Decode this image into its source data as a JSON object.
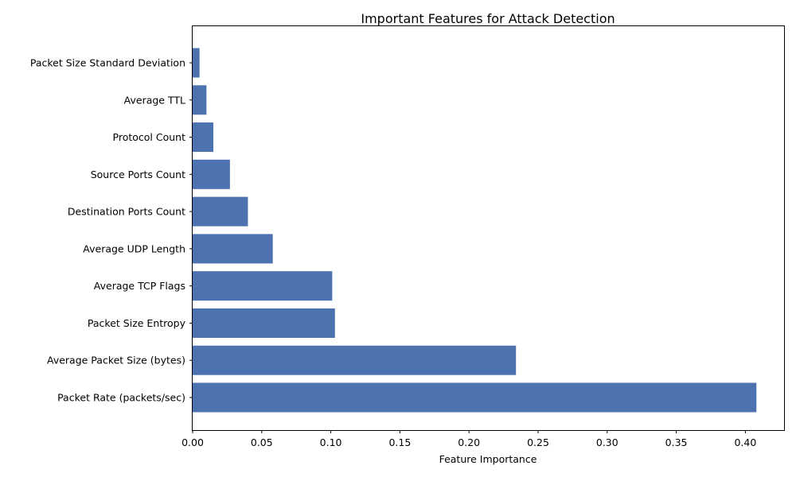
{
  "chart_data": {
    "type": "bar",
    "orientation": "horizontal",
    "title": "Important Features for Attack Detection",
    "xlabel": "Feature Importance",
    "ylabel": "",
    "xlim": [
      0,
      0.428
    ],
    "xticks": [
      "0.00",
      "0.05",
      "0.10",
      "0.15",
      "0.20",
      "0.25",
      "0.30",
      "0.35",
      "0.40"
    ],
    "grid": false,
    "bar_color": "#4c72b0",
    "categories": [
      "Packet Rate (packets/sec)",
      "Average Packet Size (bytes)",
      "Packet Size Entropy",
      "Average TCP Flags",
      "Average UDP Length",
      "Destination Ports Count",
      "Source Ports Count",
      "Protocol Count",
      "Average TTL",
      "Packet Size Standard Deviation"
    ],
    "values": [
      0.408,
      0.234,
      0.103,
      0.101,
      0.058,
      0.04,
      0.027,
      0.015,
      0.01,
      0.005
    ]
  }
}
